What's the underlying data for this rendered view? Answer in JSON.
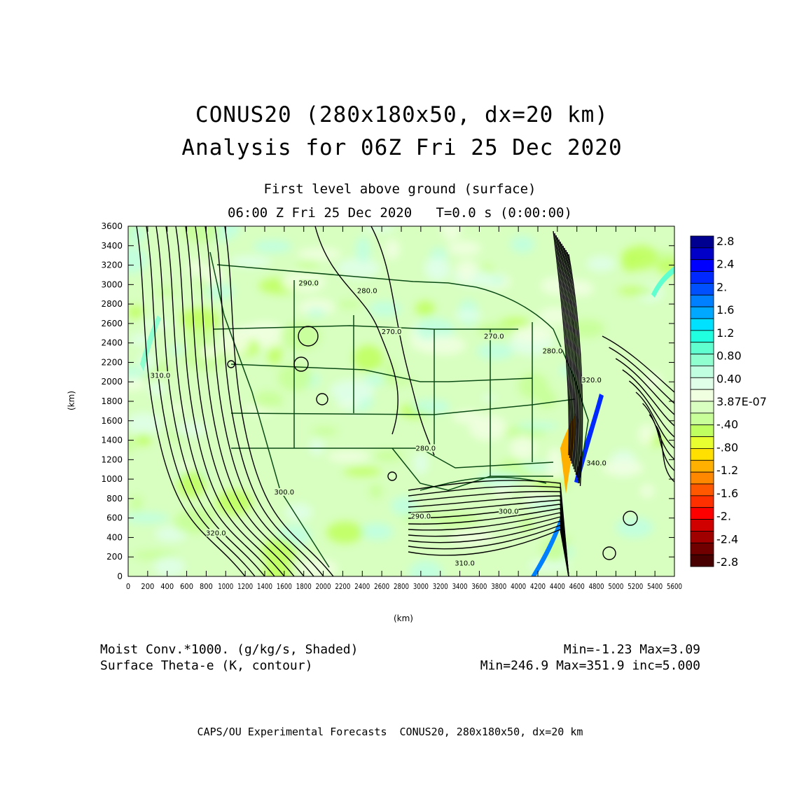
{
  "title": {
    "line1": "CONUS20 (280x180x50, dx=20 km)",
    "line2": "Analysis for 06Z Fri 25 Dec 2020"
  },
  "subtitle": {
    "level": "First level above ground (surface)",
    "time": "06:00 Z Fri 25 Dec 2020   T=0.0 s (0:00:00)"
  },
  "axes": {
    "x_label": "(km)",
    "y_label": "(km)",
    "x_range": [
      0,
      5600
    ],
    "y_range": [
      0,
      3600
    ],
    "x_ticks": [
      "0",
      "200",
      "400",
      "600",
      "800",
      "1000",
      "1200",
      "1400",
      "1600",
      "1800",
      "2000",
      "2200",
      "2400",
      "2600",
      "2800",
      "3000",
      "3200",
      "3400",
      "3600",
      "3800",
      "4000",
      "4200",
      "4400",
      "4600",
      "4800",
      "5000",
      "5200",
      "5400",
      "5600"
    ],
    "y_ticks": [
      "0",
      "200",
      "400",
      "600",
      "800",
      "1000",
      "1200",
      "1400",
      "1600",
      "1800",
      "2000",
      "2200",
      "2400",
      "2600",
      "2800",
      "3000",
      "3200",
      "3400",
      "3600"
    ]
  },
  "colorbar": {
    "labels": [
      "2.8",
      "2.4",
      "2.",
      "1.6",
      "1.2",
      "0.80",
      "0.40",
      "3.87E-07",
      "-.40",
      "-.80",
      "-1.2",
      "-1.6",
      "-2.",
      "-2.4",
      "-2.8"
    ],
    "colors": [
      "#000090",
      "#0000c8",
      "#0000ff",
      "#0028ff",
      "#0050ff",
      "#0080ff",
      "#00a8ff",
      "#00e0ff",
      "#20ffe0",
      "#60ffd0",
      "#90ffd0",
      "#c0ffe0",
      "#e0ffe8",
      "#f0ffe0",
      "#d8ffc0",
      "#c8ff98",
      "#c0ff60",
      "#e8ff30",
      "#ffe000",
      "#ffb000",
      "#ff8800",
      "#ff5800",
      "#ff3000",
      "#ff0000",
      "#d00000",
      "#a00000",
      "#700000",
      "#480000"
    ]
  },
  "contour_labels": [
    {
      "text": "290.0",
      "x": 1850,
      "y": 3000
    },
    {
      "text": "280.0",
      "x": 2450,
      "y": 2920
    },
    {
      "text": "270.0",
      "x": 2700,
      "y": 2500
    },
    {
      "text": "310.0",
      "x": 330,
      "y": 2050
    },
    {
      "text": "320.0",
      "x": 900,
      "y": 430
    },
    {
      "text": "300.0",
      "x": 1600,
      "y": 850
    },
    {
      "text": "290.0",
      "x": 3000,
      "y": 600
    },
    {
      "text": "300.0",
      "x": 3900,
      "y": 650
    },
    {
      "text": "310.0",
      "x": 3450,
      "y": 120
    },
    {
      "text": "340.0",
      "x": 4800,
      "y": 1150
    },
    {
      "text": "320.0",
      "x": 4750,
      "y": 2000
    },
    {
      "text": "280.0",
      "x": 4350,
      "y": 2300
    },
    {
      "text": "280.0",
      "x": 3050,
      "y": 1300
    },
    {
      "text": "270.0",
      "x": 3750,
      "y": 2450
    }
  ],
  "legend": {
    "shaded_label": "Moist Conv.*1000. (g/kg/s, Shaded)",
    "shaded_stats": "Min=-1.23 Max=3.09",
    "contour_label": "Surface Theta-e (K, contour)",
    "contour_stats": "Min=246.9 Max=351.9 inc=5.000"
  },
  "footer": "CAPS/OU Experimental Forecasts  CONUS20, 280x180x50, dx=20 km"
}
